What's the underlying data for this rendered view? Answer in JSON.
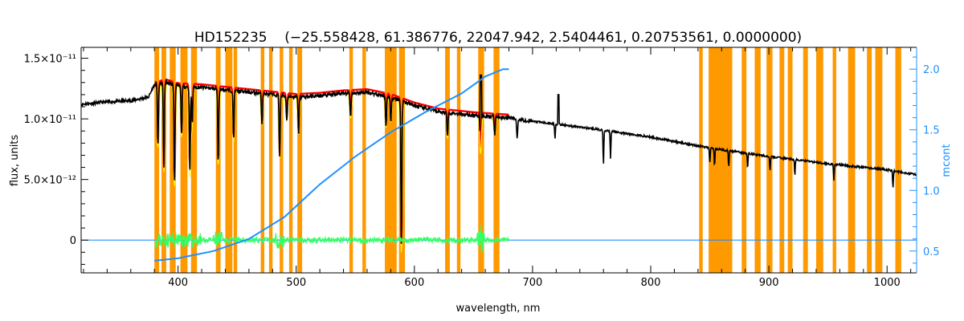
{
  "chart_data": {
    "type": "line",
    "title_star": "HD152235",
    "title_params": "(−25.558428, 61.386776, 22047.942, 2.5404461, 0.20753561, 0.0000000)",
    "xlabel": "wavelength, nm",
    "ylabel": "flux, units",
    "y2label": "mcont",
    "xlim": [
      318,
      1025
    ],
    "ylim": [
      -2.7e-12,
      1.59e-11
    ],
    "y2lim": [
      0.32,
      2.18
    ],
    "xticks": [
      {
        "value": 400,
        "label": "400"
      },
      {
        "value": 500,
        "label": "500"
      },
      {
        "value": 600,
        "label": "600"
      },
      {
        "value": 700,
        "label": "700"
      },
      {
        "value": 800,
        "label": "800"
      },
      {
        "value": 900,
        "label": "900"
      },
      {
        "value": 1000,
        "label": "1000"
      }
    ],
    "yticks": [
      {
        "value": 0,
        "label": "0"
      },
      {
        "value": 5e-12,
        "label": "5.0×10⁻¹²"
      },
      {
        "value": 1e-11,
        "label": "1.0×10⁻¹¹"
      },
      {
        "value": 1.5e-11,
        "label": "1.5×10⁻¹¹"
      }
    ],
    "y2ticks": [
      {
        "value": 0.5,
        "label": "0.5"
      },
      {
        "value": 1.0,
        "label": "1.0"
      },
      {
        "value": 1.5,
        "label": "1.5"
      },
      {
        "value": 2.0,
        "label": "2.0"
      }
    ],
    "masked_regions": [
      [
        380,
        384
      ],
      [
        386,
        390
      ],
      [
        393,
        398
      ],
      [
        402,
        408
      ],
      [
        411,
        416
      ],
      [
        432,
        436
      ],
      [
        440,
        446
      ],
      [
        447,
        450
      ],
      [
        470,
        473
      ],
      [
        477,
        480
      ],
      [
        486,
        489
      ],
      [
        494,
        497
      ],
      [
        501,
        505
      ],
      [
        545,
        548
      ],
      [
        556,
        559
      ],
      [
        575,
        585
      ],
      [
        587,
        592
      ],
      [
        626,
        630
      ],
      [
        636,
        639
      ],
      [
        654,
        659
      ],
      [
        667,
        672
      ],
      [
        841,
        844
      ],
      [
        849,
        869
      ],
      [
        877,
        881
      ],
      [
        888,
        893
      ],
      [
        898,
        903
      ],
      [
        909,
        913
      ],
      [
        916,
        920
      ],
      [
        929,
        933
      ],
      [
        940,
        946
      ],
      [
        954,
        957
      ],
      [
        967,
        973
      ],
      [
        983,
        987
      ],
      [
        990,
        996
      ],
      [
        1007,
        1012
      ]
    ],
    "observed_spectrum": [
      [
        318,
        1.12e-11
      ],
      [
        340,
        1.14e-11
      ],
      [
        360,
        1.15e-11
      ],
      [
        375,
        1.18e-11
      ],
      [
        380,
        1.28e-11
      ],
      [
        390,
        1.3e-11
      ],
      [
        400,
        1.27e-11
      ],
      [
        420,
        1.26e-11
      ],
      [
        450,
        1.23e-11
      ],
      [
        480,
        1.2e-11
      ],
      [
        500,
        1.18e-11
      ],
      [
        520,
        1.19e-11
      ],
      [
        540,
        1.21e-11
      ],
      [
        560,
        1.22e-11
      ],
      [
        580,
        1.18e-11
      ],
      [
        600,
        1.11e-11
      ],
      [
        620,
        1.06e-11
      ],
      [
        650,
        1.03e-11
      ],
      [
        680,
        1.01e-11
      ],
      [
        700,
        9.8e-12
      ],
      [
        750,
        9.2e-12
      ],
      [
        800,
        8.5e-12
      ],
      [
        850,
        7.6e-12
      ],
      [
        900,
        6.9e-12
      ],
      [
        950,
        6.3e-12
      ],
      [
        1000,
        5.8e-12
      ],
      [
        1025,
        5.4e-12
      ]
    ],
    "absorption_lines": [
      {
        "x": 383,
        "depth": 5e-12
      },
      {
        "x": 388,
        "depth": 7e-12
      },
      {
        "x": 397,
        "depth": 8e-12
      },
      {
        "x": 403,
        "depth": 4e-12
      },
      {
        "x": 410,
        "depth": 7e-12
      },
      {
        "x": 412,
        "depth": 3e-12
      },
      {
        "x": 434,
        "depth": 6e-12
      },
      {
        "x": 447,
        "depth": 4e-12
      },
      {
        "x": 471,
        "depth": 2.5e-12
      },
      {
        "x": 486,
        "depth": 5e-12
      },
      {
        "x": 492,
        "depth": 2e-12
      },
      {
        "x": 502,
        "depth": 3e-12
      },
      {
        "x": 546,
        "depth": 2e-12
      },
      {
        "x": 576,
        "depth": 2.5e-12
      },
      {
        "x": 580,
        "depth": 2e-12
      },
      {
        "x": 589,
        "depth": 1.2e-11
      },
      {
        "x": 628,
        "depth": 2e-12
      },
      {
        "x": 656,
        "depth": 3e-12
      },
      {
        "x": 668,
        "depth": 1.5e-12
      },
      {
        "x": 687,
        "depth": 1.5e-12
      },
      {
        "x": 719,
        "depth": 1.2e-12
      },
      {
        "x": 760,
        "depth": 2.8e-12
      },
      {
        "x": 766,
        "depth": 2.2e-12
      },
      {
        "x": 850,
        "depth": 1.2e-12
      },
      {
        "x": 854,
        "depth": 1.4e-12
      },
      {
        "x": 866,
        "depth": 1.4e-12
      },
      {
        "x": 882,
        "depth": 1.2e-12
      },
      {
        "x": 901,
        "depth": 1.1e-12
      },
      {
        "x": 922,
        "depth": 1.3e-12
      },
      {
        "x": 955,
        "depth": 1.3e-12
      },
      {
        "x": 1005,
        "depth": 1.4e-12
      }
    ],
    "emission_spikes": [
      {
        "x": 656.3,
        "peak": 1.36e-11
      },
      {
        "x": 722,
        "peak": 1.2e-11
      }
    ],
    "model_fit_range": [
      380,
      680
    ],
    "residuals_range": [
      380,
      680
    ],
    "mcont_curve": [
      [
        380,
        0.42
      ],
      [
        400,
        0.44
      ],
      [
        430,
        0.5
      ],
      [
        460,
        0.6
      ],
      [
        490,
        0.78
      ],
      [
        520,
        1.05
      ],
      [
        550,
        1.28
      ],
      [
        580,
        1.48
      ],
      [
        610,
        1.65
      ],
      [
        640,
        1.8
      ],
      [
        660,
        1.94
      ],
      [
        675,
        2.0
      ],
      [
        680,
        2.0
      ]
    ],
    "colors": {
      "masked_region": "#ff9900",
      "observed": "#000000",
      "model": "#ff0000",
      "model_core": "#ffff00",
      "residuals": "#33ff66",
      "mcont": "#1e90ff",
      "axis": "#000000",
      "right_axis": "#1e90ff"
    }
  }
}
